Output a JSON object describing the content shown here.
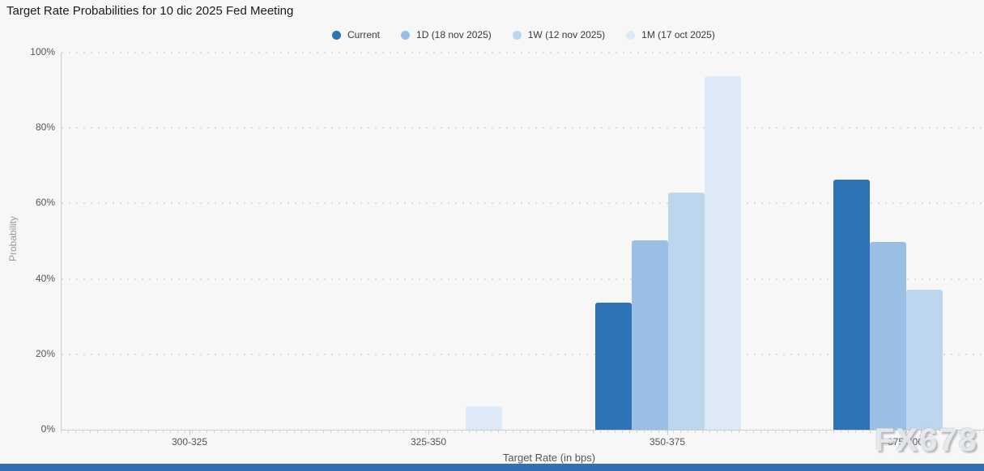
{
  "title": "Target Rate Probabilities for 10 dic 2025 Fed Meeting",
  "watermark": "FX678",
  "colors": {
    "background": "#f7f7f7",
    "axis_line": "#cccccc",
    "grid_dots": "#dcdcdc",
    "tick_text": "#555555",
    "title_text": "#1b1b1b",
    "y_axis_title_text": "#999999",
    "bottom_bar": "#336fb4"
  },
  "chart_data": {
    "type": "bar",
    "title": "Target Rate Probabilities for 10 dic 2025 Fed Meeting",
    "categories": [
      "300-325",
      "325-350",
      "350-375",
      "375-400"
    ],
    "series": [
      {
        "name": "Current",
        "color": "#2e73b5",
        "values": [
          0,
          0,
          33.7,
          66.3
        ]
      },
      {
        "name": "1D (18 nov 2025)",
        "color": "#99c0e4",
        "values": [
          0,
          0,
          50.2,
          49.8
        ]
      },
      {
        "name": "1W (12 nov 2025)",
        "color": "#bcd6ee",
        "values": [
          0,
          0,
          62.8,
          37.2
        ]
      },
      {
        "name": "1M (17 oct 2025)",
        "color": "#dde9f6",
        "values": [
          0,
          6.3,
          93.7,
          0
        ]
      }
    ],
    "xlabel": "Target Rate (in bps)",
    "ylabel": "Probability",
    "ylim": [
      0,
      100
    ],
    "ytick_labels": [
      "0%",
      "20%",
      "40%",
      "60%",
      "80%",
      "100%"
    ],
    "grid": "horizontal dotted",
    "legend_position": "top"
  }
}
